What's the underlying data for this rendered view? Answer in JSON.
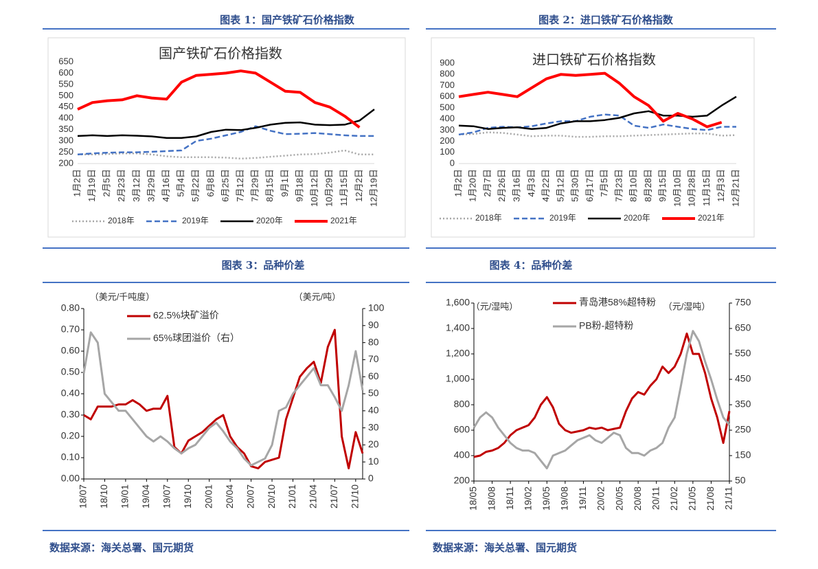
{
  "captions": [
    "图表 1：国产铁矿石价格指数",
    "图表 2：进口铁矿石价格指数",
    "图表 3：品种价差",
    "图表 4：品种价差"
  ],
  "sources": [
    "数据来源：海关总署、国元期货",
    "数据来源：海关总署、国元期货"
  ],
  "chart_data": [
    {
      "type": "line",
      "title": "国产铁矿石价格指数",
      "categories": [
        "1月2日",
        "1月19日",
        "2月5日",
        "2月23日",
        "3月12日",
        "3月29日",
        "4月16日",
        "5月4日",
        "5月22日",
        "6月8日",
        "6月25日",
        "7月12日",
        "7月29日",
        "8月15日",
        "9月1日",
        "9月18日",
        "10月12日",
        "10月29日",
        "11月15日",
        "12月2日",
        "12月19日"
      ],
      "ylim": [
        200,
        650
      ],
      "yticks": [
        200,
        250,
        300,
        350,
        400,
        450,
        500,
        550,
        600,
        650
      ],
      "legend": "bottom",
      "series": [
        {
          "name": "2018年",
          "color": "#a6a6a6",
          "dash": "dotted",
          "values": [
            240,
            240,
            242,
            245,
            245,
            240,
            232,
            228,
            228,
            228,
            226,
            222,
            225,
            230,
            235,
            240,
            242,
            248,
            258,
            240,
            240
          ]
        },
        {
          "name": "2019年",
          "color": "#4472c4",
          "dash": "dashed",
          "values": [
            240,
            245,
            248,
            250,
            250,
            252,
            255,
            258,
            300,
            310,
            325,
            340,
            365,
            345,
            330,
            332,
            335,
            330,
            325,
            322,
            322
          ]
        },
        {
          "name": "2020年",
          "color": "#000000",
          "dash": "solid",
          "values": [
            322,
            325,
            322,
            325,
            323,
            320,
            313,
            313,
            320,
            340,
            350,
            348,
            358,
            372,
            380,
            382,
            372,
            370,
            372,
            390,
            440
          ]
        },
        {
          "name": "2021年",
          "color": "#ff0000",
          "dash": "solid",
          "values": [
            440,
            470,
            478,
            482,
            500,
            490,
            485,
            560,
            590,
            595,
            600,
            610,
            600,
            560,
            520,
            515,
            470,
            450,
            410,
            360,
            null
          ]
        }
      ]
    },
    {
      "type": "line",
      "title": "进口铁矿石价格指数",
      "categories": [
        "1月2日",
        "1月20日",
        "2月7日",
        "2月26日",
        "3月16日",
        "4月3日",
        "4月22日",
        "5月12日",
        "5月30日",
        "6月17日",
        "7月5日",
        "7月23日",
        "8月10日",
        "8月28日",
        "9月15日",
        "10月10日",
        "10月28日",
        "11月15日",
        "12月3日",
        "12月21日"
      ],
      "ylim": [
        0,
        900
      ],
      "yticks": [
        0,
        100,
        200,
        300,
        400,
        500,
        600,
        700,
        800,
        900
      ],
      "legend": "bottom",
      "series": [
        {
          "name": "2018年",
          "color": "#a6a6a6",
          "dash": "dotted",
          "values": [
            260,
            265,
            280,
            275,
            260,
            245,
            250,
            250,
            240,
            240,
            245,
            245,
            250,
            255,
            260,
            265,
            270,
            270,
            250,
            255
          ]
        },
        {
          "name": "2019年",
          "color": "#4472c4",
          "dash": "dashed",
          "values": [
            260,
            280,
            320,
            330,
            325,
            335,
            360,
            380,
            380,
            420,
            440,
            430,
            340,
            320,
            350,
            330,
            310,
            300,
            330,
            330
          ]
        },
        {
          "name": "2020年",
          "color": "#000000",
          "dash": "solid",
          "values": [
            340,
            335,
            310,
            320,
            325,
            310,
            320,
            360,
            380,
            380,
            390,
            410,
            450,
            470,
            430,
            430,
            420,
            430,
            520,
            600
          ]
        },
        {
          "name": "2021年",
          "color": "#ff0000",
          "dash": "solid",
          "values": [
            600,
            620,
            640,
            620,
            600,
            680,
            760,
            800,
            790,
            800,
            810,
            720,
            600,
            520,
            380,
            450,
            400,
            330,
            370,
            null
          ]
        }
      ]
    },
    {
      "type": "line",
      "y_label": "（美元/千吨度）",
      "y2_label": "（美元/吨）",
      "categories": [
        "18/07",
        null,
        null,
        "18/10",
        null,
        null,
        "19/01",
        null,
        null,
        "19/04",
        null,
        null,
        "19/07",
        null,
        null,
        "19/10",
        null,
        null,
        "20/01",
        null,
        null,
        "20/04",
        null,
        null,
        "20/07",
        null,
        null,
        "20/10",
        null,
        null,
        "21/01",
        null,
        null,
        "21/04",
        null,
        null,
        "21/07",
        null,
        null,
        "21/10",
        null
      ],
      "ylim": [
        0,
        0.8
      ],
      "yticks": [
        {
          "value": 0,
          "label": "0.00"
        },
        {
          "value": 0.1,
          "label": "0.10"
        },
        {
          "value": 0.2,
          "label": "0.20"
        },
        {
          "value": 0.3,
          "label": "0.30"
        },
        {
          "value": 0.4,
          "label": "0.40"
        },
        {
          "value": 0.5,
          "label": "0.50"
        },
        {
          "value": 0.6,
          "label": "0.60"
        },
        {
          "value": 0.7,
          "label": "0.70"
        },
        {
          "value": 0.8,
          "label": "0.80"
        }
      ],
      "y2lim": [
        0,
        100
      ],
      "y2ticks": [
        0,
        10,
        20,
        30,
        40,
        50,
        60,
        70,
        80,
        90,
        100
      ],
      "legend": "top",
      "series": [
        {
          "name": "62.5%块矿溢价",
          "color": "#c00000",
          "dash": "solid",
          "values": [
            0.3,
            0.28,
            0.34,
            0.34,
            0.34,
            0.35,
            0.35,
            0.37,
            0.35,
            0.32,
            0.33,
            0.33,
            0.39,
            0.15,
            0.12,
            0.18,
            0.2,
            0.22,
            0.25,
            0.28,
            0.3,
            0.2,
            0.15,
            0.12,
            0.06,
            0.05,
            0.08,
            0.09,
            0.1,
            0.28,
            0.38,
            0.48,
            0.52,
            0.55,
            0.45,
            0.62,
            0.7,
            0.2,
            0.05,
            0.22,
            0.12
          ]
        },
        {
          "name": "65%球团溢价（右）",
          "color": "#a6a6a6",
          "dash": "solid",
          "axis": "y2",
          "values": [
            62,
            86,
            80,
            50,
            45,
            40,
            40,
            35,
            30,
            25,
            22,
            25,
            22,
            18,
            15,
            18,
            20,
            25,
            30,
            33,
            28,
            22,
            18,
            12,
            8,
            10,
            12,
            20,
            40,
            42,
            50,
            55,
            60,
            65,
            55,
            55,
            48,
            40,
            55,
            75,
            52
          ]
        }
      ]
    },
    {
      "type": "line",
      "y_label": "（元/湿吨）",
      "y2_label": "（元/湿吨）",
      "categories": [
        "18/05",
        null,
        null,
        "18/08",
        null,
        null,
        "18/11",
        null,
        null,
        "19/02",
        null,
        null,
        "19/05",
        null,
        null,
        "19/08",
        null,
        null,
        "19/11",
        null,
        null,
        "20/02",
        null,
        null,
        "20/05",
        null,
        null,
        "20/08",
        null,
        null,
        "20/11",
        null,
        null,
        "21/02",
        null,
        null,
        "21/05",
        null,
        null,
        "21/08",
        null,
        null,
        "21/11"
      ],
      "ylim": [
        200,
        1600
      ],
      "yticks": [
        200,
        400,
        600,
        800,
        {
          "value": 1000,
          "label": "1,000"
        },
        {
          "value": 1200,
          "label": "1,200"
        },
        {
          "value": 1400,
          "label": "1,400"
        },
        {
          "value": 1600,
          "label": "1,600"
        }
      ],
      "y2lim": [
        50,
        750
      ],
      "y2ticks": [
        50,
        150,
        250,
        350,
        450,
        550,
        650,
        750
      ],
      "legend": "top",
      "series": [
        {
          "name": "青岛港58%超特粉",
          "color": "#c00000",
          "dash": "solid",
          "values": [
            390,
            400,
            430,
            440,
            460,
            500,
            560,
            600,
            620,
            640,
            700,
            800,
            860,
            780,
            650,
            600,
            580,
            590,
            600,
            620,
            610,
            620,
            600,
            610,
            620,
            750,
            850,
            900,
            880,
            950,
            1000,
            1100,
            1050,
            1100,
            1200,
            1360,
            1200,
            1200,
            1050,
            850,
            700,
            500,
            750
          ]
        },
        {
          "name": "PB粉-超特粉",
          "color": "#a6a6a6",
          "dash": "solid",
          "axis": "y2",
          "values": [
            260,
            300,
            320,
            300,
            260,
            230,
            200,
            180,
            170,
            170,
            160,
            130,
            100,
            150,
            160,
            170,
            190,
            210,
            220,
            230,
            210,
            200,
            220,
            240,
            230,
            180,
            160,
            160,
            150,
            170,
            180,
            200,
            260,
            300,
            420,
            550,
            640,
            600,
            520,
            450,
            370,
            300,
            270
          ]
        }
      ]
    }
  ]
}
